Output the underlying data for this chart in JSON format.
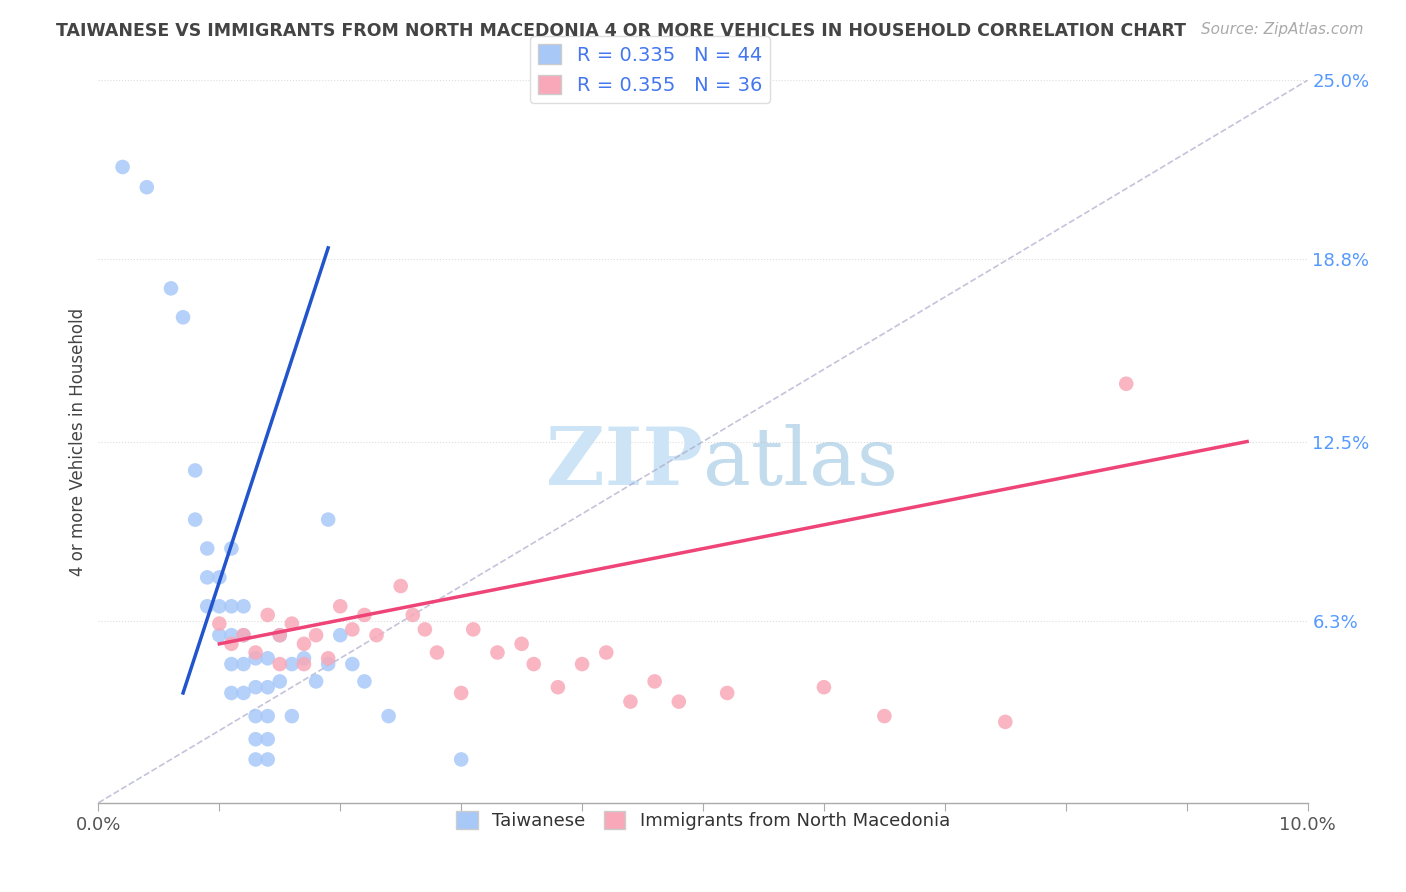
{
  "title": "TAIWANESE VS IMMIGRANTS FROM NORTH MACEDONIA 4 OR MORE VEHICLES IN HOUSEHOLD CORRELATION CHART",
  "source": "Source: ZipAtlas.com",
  "ylabel": "4 or more Vehicles in Household",
  "xlim": [
    0.0,
    0.1
  ],
  "ylim": [
    0.0,
    0.25
  ],
  "taiwanese_R": 0.335,
  "taiwanese_N": 44,
  "macedonian_R": 0.355,
  "macedonian_N": 36,
  "taiwanese_color": "#a8c8f8",
  "macedonian_color": "#f8a8b8",
  "taiwanese_line_color": "#2255cc",
  "macedonian_line_color": "#ee4477",
  "diagonal_color": "#aaaacc",
  "background_color": "#ffffff",
  "watermark_color": "#cce4f5",
  "taiwanese_x": [
    0.002,
    0.004,
    0.006,
    0.007,
    0.008,
    0.008,
    0.009,
    0.009,
    0.009,
    0.01,
    0.01,
    0.01,
    0.011,
    0.011,
    0.011,
    0.011,
    0.011,
    0.012,
    0.012,
    0.012,
    0.012,
    0.013,
    0.013,
    0.013,
    0.013,
    0.013,
    0.014,
    0.014,
    0.014,
    0.014,
    0.014,
    0.015,
    0.015,
    0.016,
    0.016,
    0.017,
    0.018,
    0.019,
    0.019,
    0.02,
    0.021,
    0.022,
    0.024,
    0.03
  ],
  "taiwanese_y": [
    0.22,
    0.213,
    0.178,
    0.168,
    0.115,
    0.098,
    0.088,
    0.078,
    0.068,
    0.078,
    0.068,
    0.058,
    0.088,
    0.068,
    0.058,
    0.048,
    0.038,
    0.068,
    0.058,
    0.048,
    0.038,
    0.05,
    0.04,
    0.03,
    0.022,
    0.015,
    0.05,
    0.04,
    0.03,
    0.022,
    0.015,
    0.058,
    0.042,
    0.048,
    0.03,
    0.05,
    0.042,
    0.098,
    0.048,
    0.058,
    0.048,
    0.042,
    0.03,
    0.015
  ],
  "macedonian_x": [
    0.01,
    0.011,
    0.012,
    0.013,
    0.014,
    0.015,
    0.015,
    0.016,
    0.017,
    0.017,
    0.018,
    0.019,
    0.02,
    0.021,
    0.022,
    0.023,
    0.025,
    0.026,
    0.027,
    0.028,
    0.03,
    0.031,
    0.033,
    0.035,
    0.036,
    0.038,
    0.04,
    0.042,
    0.044,
    0.046,
    0.048,
    0.052,
    0.06,
    0.065,
    0.075,
    0.085
  ],
  "macedonian_y": [
    0.062,
    0.055,
    0.058,
    0.052,
    0.065,
    0.058,
    0.048,
    0.062,
    0.055,
    0.048,
    0.058,
    0.05,
    0.068,
    0.06,
    0.065,
    0.058,
    0.075,
    0.065,
    0.06,
    0.052,
    0.038,
    0.06,
    0.052,
    0.055,
    0.048,
    0.04,
    0.048,
    0.052,
    0.035,
    0.042,
    0.035,
    0.038,
    0.04,
    0.03,
    0.028,
    0.145
  ],
  "tw_line_x0": 0.007,
  "tw_line_y0": 0.038,
  "tw_line_x1": 0.019,
  "tw_line_y1": 0.192,
  "mac_line_x0": 0.01,
  "mac_line_y0": 0.055,
  "mac_line_x1": 0.095,
  "mac_line_y1": 0.125
}
